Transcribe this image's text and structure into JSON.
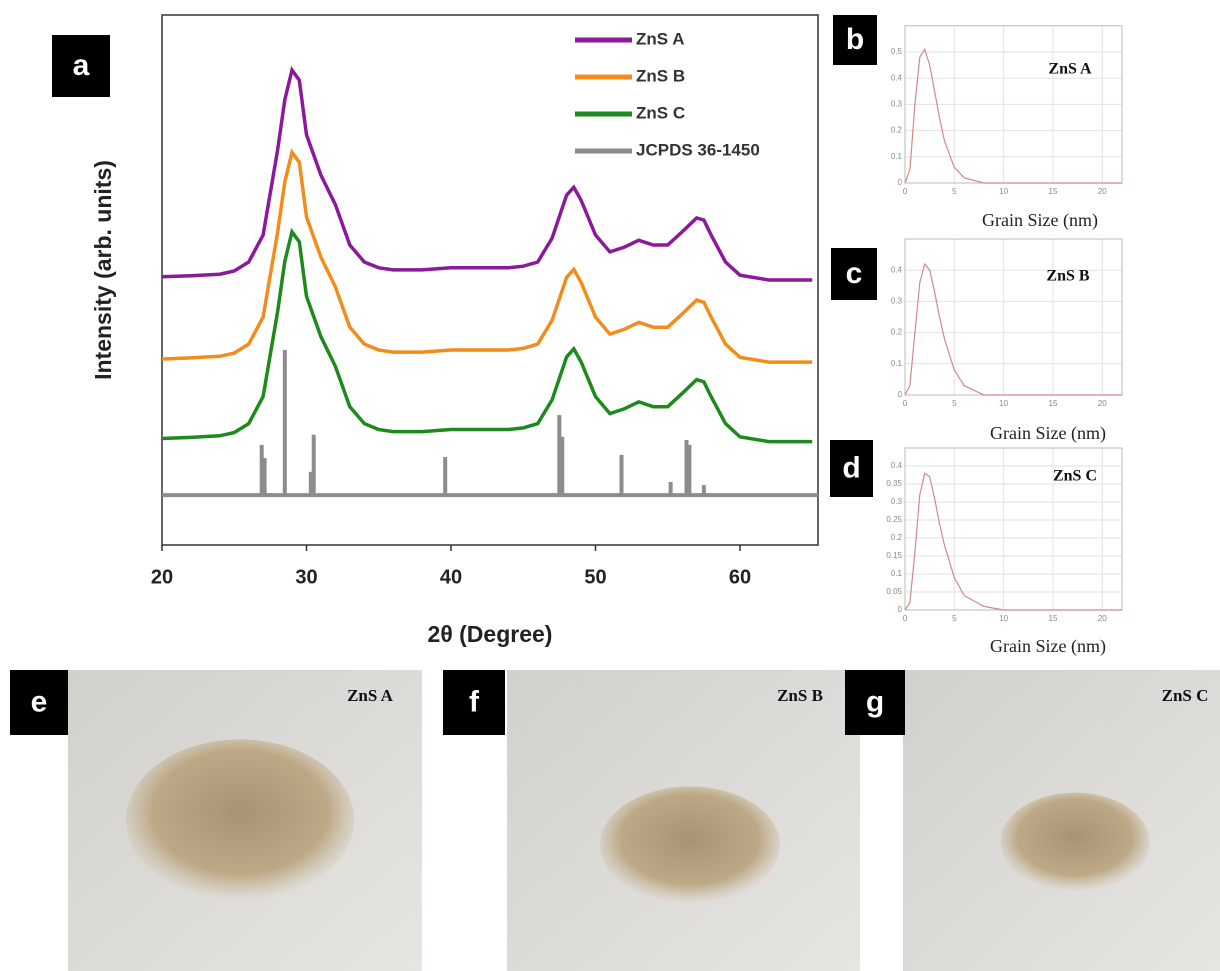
{
  "chart_data": [
    {
      "type": "line",
      "panel_label": "a",
      "x": [
        20,
        22,
        24,
        25,
        26,
        27,
        28,
        28.5,
        29,
        29.5,
        30,
        31,
        32,
        33,
        34,
        35,
        36,
        38,
        40,
        42,
        44,
        45,
        46,
        47,
        48,
        48.5,
        49,
        50,
        51,
        52,
        53,
        54,
        55,
        56,
        57,
        57.5,
        58,
        59,
        60,
        62,
        65
      ],
      "xlim": [
        20,
        65.4
      ],
      "xticks": [
        20,
        30,
        40,
        50,
        60
      ],
      "ylim": [
        0,
        100
      ],
      "xlabel": "2θ (Degree)",
      "ylabel": "Intensity (arb. units)",
      "legend": "upper right",
      "series": [
        {
          "name": "ZnS A",
          "color": "#8b1a9a",
          "values": [
            50.6,
            50.8,
            51.1,
            51.7,
            53.4,
            58.5,
            74.5,
            84.0,
            89.6,
            87.7,
            77.4,
            69.8,
            64.2,
            56.6,
            53.4,
            52.3,
            51.9,
            51.9,
            52.3,
            52.3,
            52.3,
            52.6,
            53.4,
            57.9,
            66.0,
            67.5,
            65.1,
            58.5,
            55.3,
            56.2,
            57.5,
            56.6,
            56.6,
            59.1,
            61.7,
            61.3,
            58.5,
            53.4,
            50.9,
            50.0,
            50.0
          ]
        },
        {
          "name": "ZnS B",
          "color": "#f28c1c",
          "values": [
            35.1,
            35.3,
            35.6,
            36.2,
            37.9,
            43.0,
            59.0,
            68.5,
            74.1,
            72.2,
            61.9,
            54.3,
            48.7,
            41.1,
            37.9,
            36.8,
            36.4,
            36.4,
            36.8,
            36.8,
            36.8,
            37.1,
            37.9,
            42.4,
            50.5,
            52.0,
            49.6,
            43.0,
            39.8,
            40.7,
            42.0,
            41.1,
            41.1,
            43.6,
            46.2,
            45.8,
            43.0,
            37.9,
            35.4,
            34.5,
            34.5
          ]
        },
        {
          "name": "ZnS C",
          "color": "#1e8a1e",
          "values": [
            20.1,
            20.3,
            20.6,
            21.2,
            22.9,
            28.0,
            44.0,
            53.5,
            59.1,
            57.2,
            46.9,
            39.3,
            33.7,
            26.1,
            22.9,
            21.8,
            21.4,
            21.4,
            21.8,
            21.8,
            21.8,
            22.1,
            22.9,
            27.4,
            35.5,
            37.0,
            34.6,
            28.0,
            24.8,
            25.7,
            27.0,
            26.1,
            26.1,
            28.6,
            31.2,
            30.8,
            28.0,
            22.9,
            20.4,
            19.5,
            19.5
          ]
        },
        {
          "name": "JCPDS 36-1450",
          "color": "#8c8c8c",
          "baseline": 9.4,
          "x": [
            26.9,
            27.1,
            28.5,
            30.3,
            30.5,
            39.6,
            47.5,
            47.7,
            51.8,
            55.2,
            56.3,
            56.5,
            57.5
          ],
          "values": [
            18.9,
            16.4,
            36.8,
            13.8,
            20.8,
            16.6,
            24.5,
            20.4,
            17.0,
            11.9,
            19.8,
            18.9,
            11.3
          ]
        }
      ]
    },
    {
      "type": "line",
      "panel_label": "b",
      "title": "ZnS A",
      "xlabel": "Grain Size (nm)",
      "x": [
        0,
        0.5,
        1,
        1.5,
        2,
        2.5,
        3,
        3.5,
        4,
        5,
        6,
        8,
        10,
        15,
        20,
        22
      ],
      "xlim": [
        0,
        22
      ],
      "xticks": [
        0,
        5,
        10,
        15,
        20
      ],
      "ylim": [
        0,
        0.6
      ],
      "yticks": [
        0,
        0.1,
        0.2,
        0.3,
        0.4,
        0.5
      ],
      "grid": true,
      "series": [
        {
          "color": "#d08a8a",
          "values": [
            0,
            0.05,
            0.3,
            0.48,
            0.51,
            0.45,
            0.35,
            0.25,
            0.16,
            0.06,
            0.02,
            0,
            0,
            0,
            0,
            0
          ]
        }
      ]
    },
    {
      "type": "line",
      "panel_label": "c",
      "title": "ZnS B",
      "xlabel": "Grain Size (nm)",
      "x": [
        0,
        0.5,
        1,
        1.5,
        2,
        2.5,
        3,
        3.5,
        4,
        5,
        6,
        8,
        10,
        15,
        20,
        22
      ],
      "xlim": [
        0,
        22
      ],
      "xticks": [
        0,
        5,
        10,
        15,
        20
      ],
      "ylim": [
        0,
        0.5
      ],
      "yticks": [
        0,
        0.1,
        0.2,
        0.3,
        0.4
      ],
      "grid": true,
      "series": [
        {
          "color": "#d08a8a",
          "values": [
            0,
            0.03,
            0.2,
            0.36,
            0.42,
            0.4,
            0.33,
            0.25,
            0.18,
            0.08,
            0.03,
            0,
            0,
            0,
            0,
            0
          ]
        }
      ]
    },
    {
      "type": "line",
      "panel_label": "d",
      "title": "ZnS C",
      "xlabel": "Grain Size (nm)",
      "x": [
        0,
        0.5,
        1,
        1.5,
        2,
        2.5,
        3,
        3.5,
        4,
        5,
        6,
        8,
        10,
        15,
        20,
        22
      ],
      "xlim": [
        0,
        22
      ],
      "xticks": [
        0,
        5,
        10,
        15,
        20
      ],
      "ylim": [
        0,
        0.45
      ],
      "yticks": [
        0,
        0.05,
        0.1,
        0.15,
        0.2,
        0.25,
        0.3,
        0.35,
        0.4
      ],
      "grid": true,
      "series": [
        {
          "color": "#d08a8a",
          "values": [
            0,
            0.02,
            0.16,
            0.32,
            0.38,
            0.37,
            0.31,
            0.24,
            0.18,
            0.09,
            0.04,
            0.01,
            0,
            0,
            0,
            0
          ]
        }
      ]
    }
  ],
  "photos": [
    {
      "panel_label": "e",
      "label": "ZnS A"
    },
    {
      "panel_label": "f",
      "label": "ZnS B"
    },
    {
      "panel_label": "g",
      "label": "ZnS C"
    }
  ]
}
